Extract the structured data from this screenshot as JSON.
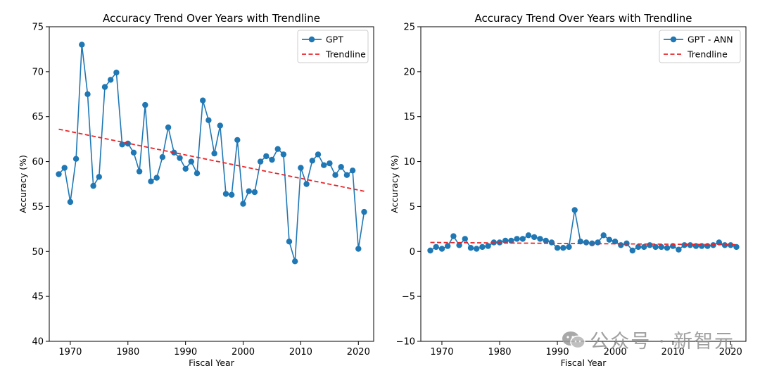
{
  "chart_data": [
    {
      "type": "line",
      "title": "Accuracy Trend Over Years with Trendline",
      "xlabel": "Fiscal Year",
      "ylabel": "Accuracy (%)",
      "xlim": [
        1966.35,
        2022.65
      ],
      "ylim": [
        40,
        75
      ],
      "xticks": [
        1970,
        1980,
        1990,
        2000,
        2010,
        2020
      ],
      "yticks": [
        40,
        45,
        50,
        55,
        60,
        65,
        70,
        75
      ],
      "ytick_labels": [
        "40",
        "45",
        "50",
        "55",
        "60",
        "65",
        "70",
        "75"
      ],
      "grid": false,
      "legend_position": "top-right",
      "series": [
        {
          "name": "GPT",
          "color": "#1f77b4",
          "x": [
            1968,
            1969,
            1970,
            1971,
            1972,
            1973,
            1974,
            1975,
            1976,
            1977,
            1978,
            1979,
            1980,
            1981,
            1982,
            1983,
            1984,
            1985,
            1986,
            1987,
            1988,
            1989,
            1990,
            1991,
            1992,
            1993,
            1994,
            1995,
            1996,
            1997,
            1998,
            1999,
            2000,
            2001,
            2002,
            2003,
            2004,
            2005,
            2006,
            2007,
            2008,
            2009,
            2010,
            2011,
            2012,
            2013,
            2014,
            2015,
            2016,
            2017,
            2018,
            2019,
            2020,
            2021
          ],
          "values": [
            58.6,
            59.3,
            55.5,
            60.3,
            73.0,
            67.5,
            57.3,
            58.3,
            68.3,
            69.1,
            69.9,
            61.9,
            62.0,
            61.0,
            58.9,
            66.3,
            57.8,
            58.2,
            60.5,
            63.8,
            61.0,
            60.4,
            59.2,
            60.0,
            58.7,
            66.8,
            64.6,
            60.9,
            64.0,
            56.4,
            56.3,
            62.4,
            55.3,
            56.7,
            56.6,
            60.0,
            60.6,
            60.2,
            61.4,
            60.8,
            51.1,
            48.9,
            59.3,
            57.5,
            60.1,
            60.8,
            59.6,
            59.8,
            58.5,
            59.4,
            58.5,
            59.0,
            50.3,
            54.4
          ]
        },
        {
          "name": "Trendline",
          "color": "#e8262a",
          "dashed": true,
          "x": [
            1968,
            2021
          ],
          "values": [
            63.6,
            56.7
          ]
        }
      ]
    },
    {
      "type": "line",
      "title": "Accuracy Trend Over Years with Trendline",
      "xlabel": "Fiscal Year",
      "ylabel": "Accuracy (%)",
      "xlim": [
        1966.35,
        2022.65
      ],
      "ylim": [
        -10,
        25
      ],
      "xticks": [
        1970,
        1980,
        1990,
        2000,
        2010,
        2020
      ],
      "yticks": [
        -10,
        -5,
        0,
        5,
        10,
        15,
        20,
        25
      ],
      "ytick_labels": [
        "−10",
        "−5",
        "0",
        "5",
        "10",
        "15",
        "20",
        "25"
      ],
      "grid": false,
      "legend_position": "top-right",
      "series": [
        {
          "name": "GPT - ANN",
          "color": "#1f77b4",
          "x": [
            1968,
            1969,
            1970,
            1971,
            1972,
            1973,
            1974,
            1975,
            1976,
            1977,
            1978,
            1979,
            1980,
            1981,
            1982,
            1983,
            1984,
            1985,
            1986,
            1987,
            1988,
            1989,
            1990,
            1991,
            1992,
            1993,
            1994,
            1995,
            1996,
            1997,
            1998,
            1999,
            2000,
            2001,
            2002,
            2003,
            2004,
            2005,
            2006,
            2007,
            2008,
            2009,
            2010,
            2011,
            2012,
            2013,
            2014,
            2015,
            2016,
            2017,
            2018,
            2019,
            2020,
            2021
          ],
          "values": [
            0.1,
            0.5,
            0.3,
            0.6,
            1.7,
            0.7,
            1.4,
            0.4,
            0.3,
            0.5,
            0.6,
            1.0,
            1.0,
            1.2,
            1.2,
            1.4,
            1.4,
            1.8,
            1.6,
            1.4,
            1.2,
            1.0,
            0.4,
            0.4,
            0.5,
            4.6,
            1.1,
            1.0,
            0.9,
            1.0,
            1.8,
            1.3,
            1.1,
            0.7,
            0.9,
            0.1,
            0.5,
            0.5,
            0.7,
            0.5,
            0.5,
            0.4,
            0.6,
            0.2,
            0.7,
            0.7,
            0.6,
            0.6,
            0.6,
            0.7,
            1.0,
            0.7,
            0.7,
            0.5
          ]
        },
        {
          "name": "Trendline",
          "color": "#e8262a",
          "dashed": true,
          "x": [
            1968,
            2021
          ],
          "values": [
            1.0,
            0.75
          ]
        }
      ]
    }
  ],
  "watermark": {
    "text": "公众号 · 新智元"
  }
}
